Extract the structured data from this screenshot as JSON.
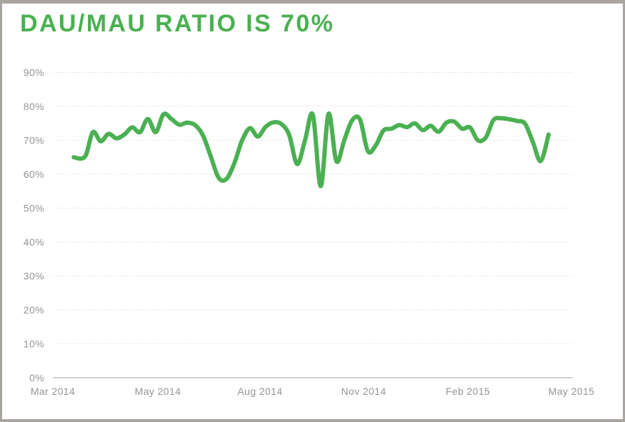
{
  "header": {
    "title": "DAU/MAU RATIO IS 70%"
  },
  "colors": {
    "accent_green": "#4BB052",
    "axis_text": "#949494",
    "gridline": "#DADADA",
    "baseline": "#D2D0CC",
    "page_border": "#A8A49E",
    "background": "#FFFFFF"
  },
  "chart_data": {
    "type": "line",
    "title": "DAU/MAU RATIO IS 70%",
    "xlabel": "",
    "ylabel": "",
    "y_unit": "%",
    "ylim": [
      0,
      90
    ],
    "grid": "horizontal-dotted, solid zero baseline",
    "legend": "none",
    "y_tick_values": [
      0,
      10,
      20,
      30,
      40,
      50,
      60,
      70,
      80,
      90
    ],
    "y_tick_labels": [
      "0%",
      "10%",
      "20%",
      "30%",
      "40%",
      "50%",
      "60%",
      "70%",
      "80%",
      "90%"
    ],
    "x_tick_labels": [
      "Mar 2014",
      "May 2014",
      "Aug 2014",
      "Nov 2014",
      "Feb 2015",
      "May 2015"
    ],
    "x_tick_positions": [
      0,
      0.2019,
      0.3984,
      0.5976,
      0.7981,
      0.9973
    ],
    "series": [
      {
        "name": "DAU/MAU ratio",
        "color": "#4BB052",
        "points": [
          [
            0.04,
            65.0
          ],
          [
            0.0618,
            65.2
          ],
          [
            0.0769,
            72.4
          ],
          [
            0.092,
            69.7
          ],
          [
            0.1071,
            71.9
          ],
          [
            0.1222,
            70.6
          ],
          [
            0.1374,
            71.7
          ],
          [
            0.1525,
            73.8
          ],
          [
            0.1676,
            72.4
          ],
          [
            0.1827,
            76.3
          ],
          [
            0.1978,
            72.4
          ],
          [
            0.2129,
            77.7
          ],
          [
            0.228,
            76.3
          ],
          [
            0.2431,
            74.6
          ],
          [
            0.2582,
            75.2
          ],
          [
            0.2734,
            74.5
          ],
          [
            0.2885,
            71.5
          ],
          [
            0.3036,
            65.3
          ],
          [
            0.3187,
            59.0
          ],
          [
            0.3338,
            58.6
          ],
          [
            0.3489,
            63.2
          ],
          [
            0.364,
            70.0
          ],
          [
            0.3791,
            73.6
          ],
          [
            0.3942,
            71.1
          ],
          [
            0.4093,
            74.0
          ],
          [
            0.4245,
            75.3
          ],
          [
            0.4396,
            74.8
          ],
          [
            0.4547,
            71.5
          ],
          [
            0.4698,
            63.0
          ],
          [
            0.4849,
            70.0
          ],
          [
            0.5,
            77.5
          ],
          [
            0.5151,
            56.5
          ],
          [
            0.5302,
            77.8
          ],
          [
            0.5453,
            63.8
          ],
          [
            0.5604,
            70.0
          ],
          [
            0.5755,
            75.9
          ],
          [
            0.5907,
            76.1
          ],
          [
            0.6058,
            66.8
          ],
          [
            0.6209,
            68.5
          ],
          [
            0.636,
            72.9
          ],
          [
            0.6511,
            73.4
          ],
          [
            0.6662,
            74.5
          ],
          [
            0.6813,
            73.9
          ],
          [
            0.6964,
            75.0
          ],
          [
            0.7115,
            73.0
          ],
          [
            0.7266,
            74.3
          ],
          [
            0.7418,
            72.5
          ],
          [
            0.7569,
            75.2
          ],
          [
            0.772,
            75.5
          ],
          [
            0.7871,
            73.4
          ],
          [
            0.8022,
            73.8
          ],
          [
            0.8173,
            70.0
          ],
          [
            0.8324,
            70.8
          ],
          [
            0.8475,
            76.0
          ],
          [
            0.8626,
            76.5
          ],
          [
            0.8777,
            76.2
          ],
          [
            0.8929,
            75.7
          ],
          [
            0.908,
            74.9
          ],
          [
            0.9231,
            69.5
          ],
          [
            0.9382,
            63.9
          ],
          [
            0.9533,
            71.7
          ]
        ]
      }
    ]
  }
}
